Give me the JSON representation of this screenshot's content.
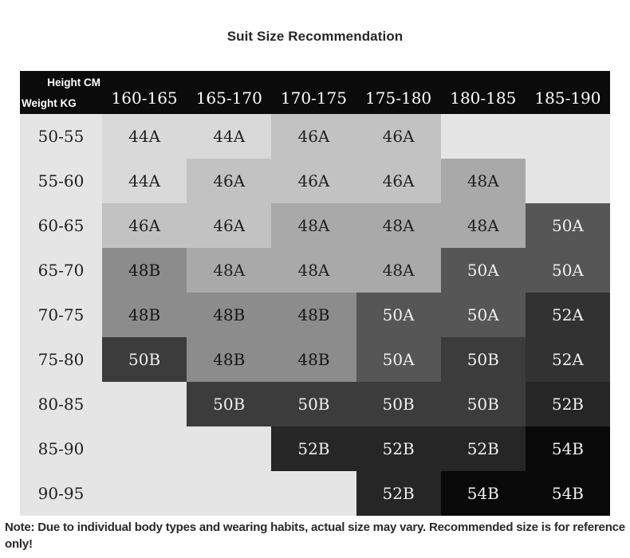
{
  "chart_data": {
    "type": "table",
    "title": "Suit Size Recommendation",
    "corner": {
      "top_label": "Height CM",
      "bottom_label": "Weight KG"
    },
    "columns": [
      "160-165",
      "165-170",
      "170-175",
      "175-180",
      "180-185",
      "185-190"
    ],
    "rows": [
      "50-55",
      "55-60",
      "60-65",
      "65-70",
      "70-75",
      "75-80",
      "80-85",
      "85-90",
      "90-95"
    ],
    "values": [
      [
        "44A",
        "44A",
        "46A",
        "46A",
        "",
        ""
      ],
      [
        "44A",
        "46A",
        "46A",
        "46A",
        "48A",
        ""
      ],
      [
        "46A",
        "46A",
        "48A",
        "48A",
        "48A",
        "50A"
      ],
      [
        "48B",
        "48A",
        "48A",
        "48A",
        "50A",
        "50A"
      ],
      [
        "48B",
        "48B",
        "48B",
        "50A",
        "50A",
        "52A"
      ],
      [
        "50B",
        "48B",
        "48B",
        "50A",
        "50B",
        "52A"
      ],
      [
        "",
        "50B",
        "50B",
        "50B",
        "50B",
        "52B"
      ],
      [
        "",
        "",
        "52B",
        "52B",
        "52B",
        "54B"
      ],
      [
        "",
        "",
        "",
        "52B",
        "54B",
        "54B"
      ]
    ],
    "note": "Note: Due to individual body types and wearing habits, actual size may vary. Recommended size is for reference only!",
    "layout": {
      "legend": "none",
      "grid": "off",
      "shading": "darker cell = larger size"
    },
    "colors": {
      "header_bg": "#0b0b0b",
      "header_fg": "#ffffff",
      "label_bg": "#e5e5e5",
      "title_fg": "#262626",
      "note_fg": "#282828",
      "palette": {
        "44A": {
          "bg": "#d9d9d9",
          "fg": "#1f1f1f"
        },
        "46A": {
          "bg": "#c2c2c2",
          "fg": "#1f1f1f"
        },
        "48A": {
          "bg": "#a9a9a9",
          "fg": "#1f1f1f"
        },
        "48B": {
          "bg": "#8c8c8c",
          "fg": "#141414"
        },
        "50A": {
          "bg": "#565656",
          "fg": "#f0f0f0"
        },
        "50B": {
          "bg": "#3c3c3c",
          "fg": "#f0f0f0"
        },
        "52A": {
          "bg": "#323232",
          "fg": "#f0f0f0"
        },
        "52B": {
          "bg": "#262626",
          "fg": "#f0f0f0"
        },
        "54B": {
          "bg": "#090909",
          "fg": "#f0f0f0"
        },
        "empty": {
          "bg": "#e5e5e5",
          "fg": "#1f1f1f"
        }
      }
    }
  }
}
